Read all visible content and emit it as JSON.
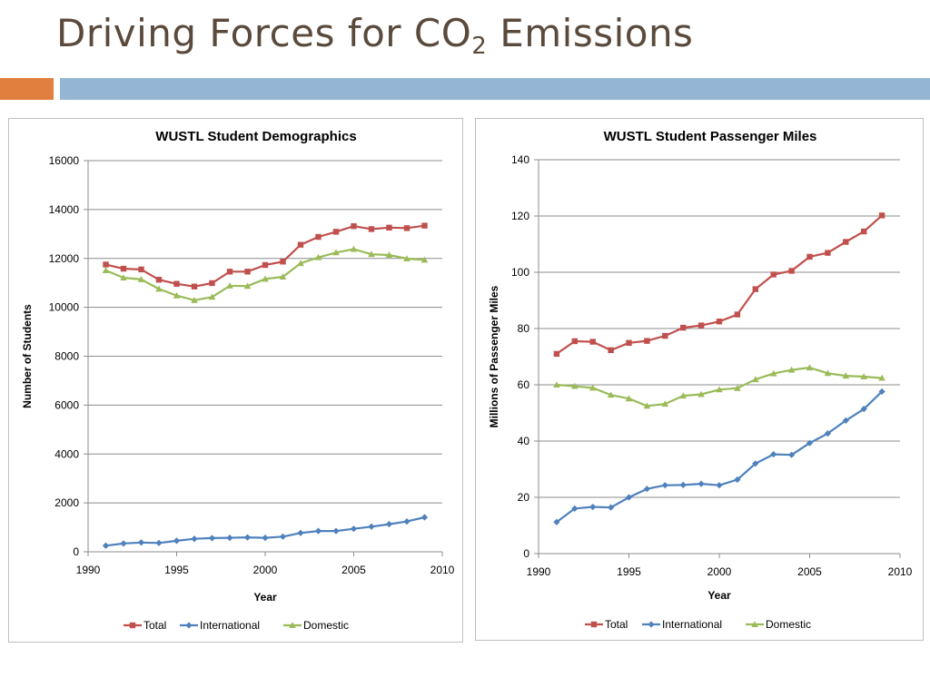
{
  "slide": {
    "title_main": "Driving Forces for CO",
    "title_sub": "2",
    "title_end": " Emissions",
    "accent_colors": {
      "orange": "#e07f3e",
      "blue": "#94b6d4"
    }
  },
  "chart_data": [
    {
      "type": "line",
      "title": "WUSTL Student Demographics",
      "xlabel": "Year",
      "ylabel": "Number of Students",
      "xlim": [
        1990,
        2010
      ],
      "xticks": [
        1990,
        1995,
        2000,
        2005,
        2010
      ],
      "ylim": [
        0,
        16000
      ],
      "yticks": [
        0,
        2000,
        4000,
        6000,
        8000,
        10000,
        12000,
        14000,
        16000
      ],
      "grid": "horizontal",
      "legend": "bottom",
      "x": [
        1991,
        1992,
        1993,
        1994,
        1995,
        1996,
        1997,
        1998,
        1999,
        2000,
        2001,
        2002,
        2003,
        2004,
        2005,
        2006,
        2007,
        2008,
        2009
      ],
      "series": [
        {
          "name": "Total",
          "color": "#c0504d",
          "marker": "square",
          "values": [
            11750,
            11580,
            11550,
            11130,
            10960,
            10850,
            10990,
            11460,
            11460,
            11730,
            11870,
            12560,
            12880,
            13090,
            13320,
            13200,
            13260,
            13240,
            13340
          ]
        },
        {
          "name": "International",
          "color": "#4f81bd",
          "marker": "diamond",
          "values": [
            250,
            340,
            380,
            360,
            450,
            530,
            560,
            570,
            590,
            570,
            620,
            770,
            850,
            850,
            940,
            1030,
            1130,
            1240,
            1410
          ]
        },
        {
          "name": "Domestic",
          "color": "#9bbb59",
          "marker": "triangle",
          "values": [
            11510,
            11210,
            11140,
            10750,
            10480,
            10290,
            10420,
            10880,
            10870,
            11160,
            11250,
            11800,
            12040,
            12240,
            12380,
            12170,
            12140,
            11990,
            11940
          ]
        }
      ]
    },
    {
      "type": "line",
      "title": "WUSTL Student Passenger Miles",
      "xlabel": "Year",
      "ylabel": "Millions of Passenger Miles",
      "xlim": [
        1990,
        2010
      ],
      "xticks": [
        1990,
        1995,
        2000,
        2005,
        2010
      ],
      "ylim": [
        0,
        140
      ],
      "yticks": [
        0,
        20,
        40,
        60,
        80,
        100,
        120,
        140
      ],
      "grid": "horizontal",
      "legend": "bottom",
      "x": [
        1991,
        1992,
        1993,
        1994,
        1995,
        1996,
        1997,
        1998,
        1999,
        2000,
        2001,
        2002,
        2003,
        2004,
        2005,
        2006,
        2007,
        2008,
        2009
      ],
      "series": [
        {
          "name": "Total",
          "color": "#c0504d",
          "marker": "square",
          "values": [
            71,
            75.5,
            75.3,
            72.3,
            74.9,
            75.6,
            77.4,
            80.3,
            81.1,
            82.5,
            85,
            94,
            99.2,
            100.5,
            105.5,
            106.9,
            110.8,
            114.5,
            120.2
          ]
        },
        {
          "name": "International",
          "color": "#4f81bd",
          "marker": "diamond",
          "values": [
            11.2,
            16,
            16.6,
            16.4,
            20,
            23,
            24.3,
            24.4,
            24.8,
            24.3,
            26.3,
            32,
            35.3,
            35.1,
            39.3,
            42.7,
            47.3,
            51.4,
            57.6
          ]
        },
        {
          "name": "Domestic",
          "color": "#9bbb59",
          "marker": "triangle",
          "values": [
            60,
            59.5,
            58.9,
            56.4,
            55.1,
            52.5,
            53.2,
            56.1,
            56.6,
            58.3,
            58.8,
            61.9,
            64,
            65.3,
            66.1,
            64.1,
            63.2,
            62.9,
            62.4
          ]
        }
      ]
    }
  ]
}
